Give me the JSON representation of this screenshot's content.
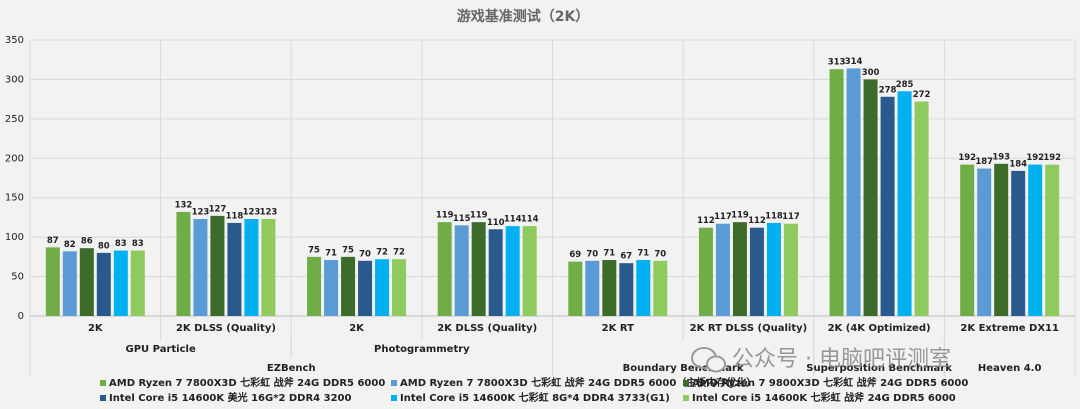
{
  "chart_data": {
    "type": "bar",
    "title": "游戏基准测试（2K）",
    "groups": [
      {
        "name": "EZBench",
        "children": [
          {
            "name": "GPU Particle",
            "categories": [
              "2K",
              "2K DLSS (Quality)"
            ]
          },
          {
            "name": "Photogrammetry",
            "categories": [
              "2K",
              "2K DLSS (Quality)"
            ]
          }
        ]
      },
      {
        "name": "Boundary Benchmark",
        "categories": [
          "2K RT",
          "2K RT DLSS (Quality)"
        ]
      },
      {
        "name": "Superposition Benchmark",
        "categories": [
          "2K (4K Optimized)"
        ]
      },
      {
        "name": "Heaven 4.0",
        "categories": [
          "2K Extreme DX11"
        ]
      }
    ],
    "series": [
      {
        "name": "AMD Ryzen 7 7800X3D 七彩虹 战斧 24G DDR5 6000",
        "color": "#70ad47",
        "values": [
          87,
          132,
          75,
          119,
          69,
          112,
          313,
          192
        ]
      },
      {
        "name": "AMD Ryzen 7 7800X3D 七彩虹 战斧 24G DDR5 6000（主板内存优化）",
        "color": "#5b9bd5",
        "values": [
          82,
          123,
          71,
          115,
          70,
          117,
          314,
          187
        ]
      },
      {
        "name": "AMD Ryzen 7 9800X3D 七彩虹 战斧 24G DDR5 6000",
        "color": "#3d6b2a",
        "values": [
          86,
          127,
          75,
          119,
          71,
          119,
          300,
          193
        ]
      },
      {
        "name": "Intel Core i5 14600K 美光 16G*2 DDR4 3200",
        "color": "#2a5a8c",
        "values": [
          80,
          118,
          70,
          110,
          67,
          112,
          278,
          184
        ]
      },
      {
        "name": "Intel Core i5 14600K 七彩虹 8G*4 DDR4 3733(G1)",
        "color": "#00b0f0",
        "values": [
          83,
          123,
          72,
          114,
          71,
          118,
          285,
          192
        ]
      },
      {
        "name": "Intel Core i5 14600K 七彩虹 战斧 24G DDR5 6000",
        "color": "#8fca5f",
        "values": [
          83,
          123,
          72,
          114,
          70,
          117,
          272,
          192
        ]
      }
    ],
    "ylim": [
      0,
      350
    ],
    "yticks": [
      0,
      50,
      100,
      150,
      200,
      250,
      300,
      350
    ],
    "grid": true,
    "legend": "bottom",
    "watermark": "公众号 · 电脑吧评测室"
  }
}
